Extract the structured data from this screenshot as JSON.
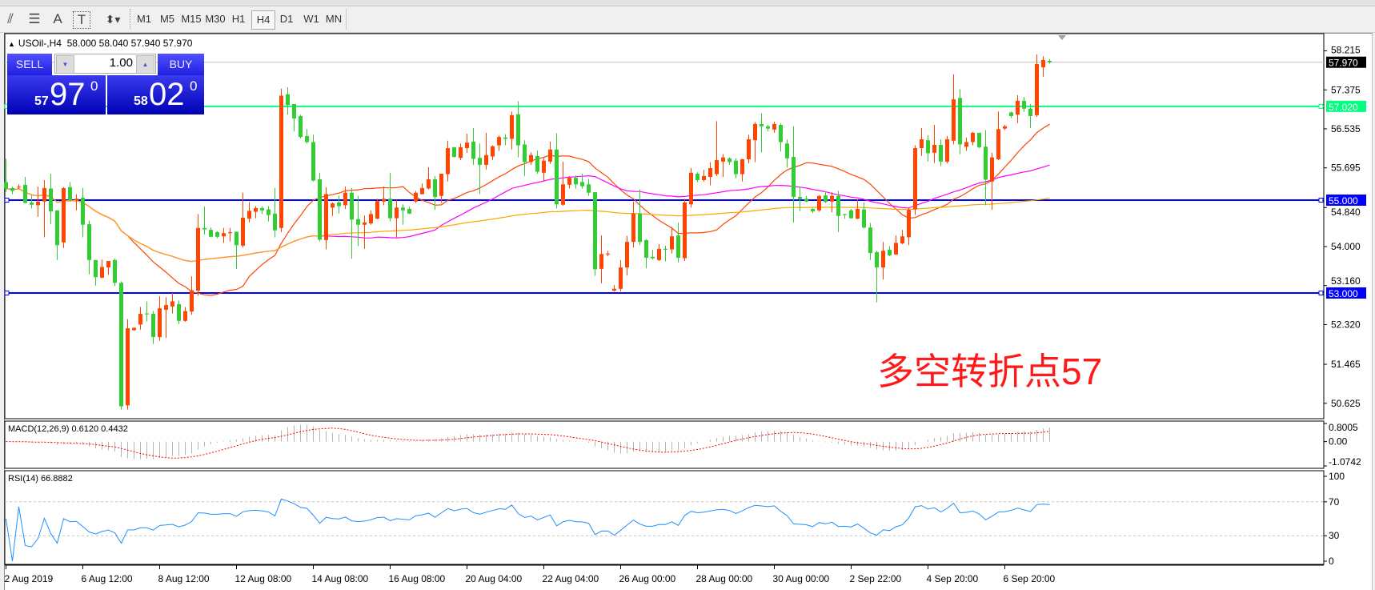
{
  "toolbar": {
    "tools": [
      {
        "icon": "fibonacci-expansion-icon",
        "glyph": "⫽"
      },
      {
        "icon": "fibonacci-retracement-icon",
        "glyph": "☰"
      },
      {
        "icon": "text-icon",
        "glyph": "A"
      },
      {
        "icon": "text-label-icon",
        "glyph": "T"
      },
      {
        "icon": "arrows-icon",
        "glyph": "⬍▾"
      }
    ],
    "timeframes": [
      "M1",
      "M5",
      "M15",
      "M30",
      "H1",
      "H4",
      "D1",
      "W1",
      "MN"
    ],
    "active_timeframe": "H4"
  },
  "chart": {
    "symbol": "USOil-,H4",
    "ohlc_text": "58.000 58.040 57.940 57.970"
  },
  "trade_panel": {
    "sell_label": "SELL",
    "buy_label": "BUY",
    "lot": "1.00",
    "sell_price": {
      "prefix": "57",
      "big": "97",
      "sup": "0"
    },
    "buy_price": {
      "prefix": "58",
      "big": "02",
      "sup": "0"
    },
    "colors": {
      "panel": "#1a1ae0"
    }
  },
  "annotation": "多空转折点57",
  "chart_data": {
    "type": "candlestick",
    "colors": {
      "bull": "#ff4500",
      "bear": "#32cd32",
      "ma_fast": "#ff4500",
      "ma_mid": "#ff00ff",
      "ma_slow": "#ffa500",
      "rsi": "#1e90ff",
      "macd_signal": "#ff0000",
      "macd_hist": "#b4b4b4"
    },
    "price_axis": {
      "ticks": [
        "58.215",
        "57.375",
        "56.535",
        "55.695",
        "54.840",
        "54.000",
        "53.160",
        "52.320",
        "51.465",
        "50.625"
      ],
      "range": [
        50.3,
        58.55
      ]
    },
    "current_price": "57.970",
    "hlines": [
      {
        "price": "57.020",
        "color": "#00ff7f",
        "text_color": "#ffffff"
      },
      {
        "price": "55.000",
        "color": "#0000ff",
        "text_color": "#ffffff"
      },
      {
        "price": "53.000",
        "color": "#0000ff",
        "text_color": "#ffffff"
      }
    ],
    "moving_averages": [
      {
        "period": 20,
        "color": "#ff4500"
      },
      {
        "period": 50,
        "color": "#ff00ff"
      },
      {
        "period": 200,
        "color": "#ffa500"
      }
    ],
    "macd": {
      "label": "MACD(12,26,9) 0.6120 0.4432",
      "fast": 12,
      "slow": 26,
      "signal": 9,
      "axis": [
        "0.8005",
        "0.00",
        "-1.0742"
      ],
      "range": [
        -1.0742,
        0.8005
      ]
    },
    "rsi": {
      "label": "RSI(14) 66.8882",
      "period": 14,
      "axis": [
        "100",
        "70",
        "30",
        "0"
      ],
      "levels": [
        70,
        30
      ]
    },
    "time_labels": [
      {
        "bar": 0,
        "text": "2 Aug 2019"
      },
      {
        "bar": 12,
        "text": "6 Aug 12:00"
      },
      {
        "bar": 24,
        "text": "8 Aug 12:00"
      },
      {
        "bar": 36,
        "text": "12 Aug 08:00"
      },
      {
        "bar": 48,
        "text": "14 Aug 08:00"
      },
      {
        "bar": 60,
        "text": "16 Aug 08:00"
      },
      {
        "bar": 72,
        "text": "20 Aug 04:00"
      },
      {
        "bar": 84,
        "text": "22 Aug 04:00"
      },
      {
        "bar": 96,
        "text": "26 Aug 00:00"
      },
      {
        "bar": 108,
        "text": "28 Aug 00:00"
      },
      {
        "bar": 120,
        "text": "30 Aug 00:00"
      },
      {
        "bar": 132,
        "text": "2 Sep 22:00"
      },
      {
        "bar": 144,
        "text": "4 Sep 20:00"
      },
      {
        "bar": 156,
        "text": "6 Sep 20:00"
      }
    ],
    "ohlc": [
      [
        55.39,
        55.89,
        55.17,
        55.25
      ],
      [
        55.26,
        55.29,
        55.13,
        55.2
      ],
      [
        55.29,
        55.34,
        55.24,
        55.29
      ],
      [
        55.33,
        55.5,
        54.93,
        54.94
      ],
      [
        54.95,
        55.11,
        54.82,
        54.9
      ],
      [
        54.89,
        55.29,
        54.64,
        54.97
      ],
      [
        54.97,
        55.43,
        54.2,
        55.26
      ],
      [
        55.25,
        55.57,
        54.48,
        54.76
      ],
      [
        54.78,
        54.78,
        53.71,
        54.03
      ],
      [
        54.09,
        55.28,
        53.97,
        55.26
      ],
      [
        55.28,
        55.39,
        54.97,
        55.0
      ],
      [
        55.0,
        55.13,
        54.78,
        55.03
      ],
      [
        55.05,
        55.26,
        54.2,
        54.47
      ],
      [
        54.48,
        54.56,
        53.4,
        53.71
      ],
      [
        53.71,
        53.71,
        53.16,
        53.34
      ],
      [
        53.33,
        53.72,
        53.32,
        53.56
      ],
      [
        53.55,
        53.69,
        53.39,
        53.69
      ],
      [
        53.71,
        53.74,
        53.15,
        53.22
      ],
      [
        53.22,
        53.25,
        50.49,
        50.56
      ],
      [
        50.58,
        52.44,
        50.49,
        52.24
      ],
      [
        52.2,
        52.26,
        52.19,
        52.25
      ],
      [
        52.32,
        52.7,
        52.21,
        52.55
      ],
      [
        52.56,
        52.82,
        52.39,
        52.54
      ],
      [
        52.55,
        52.61,
        51.9,
        52.05
      ],
      [
        52.05,
        52.93,
        51.97,
        52.67
      ],
      [
        52.64,
        52.91,
        52.03,
        52.74
      ],
      [
        52.71,
        53.0,
        52.56,
        52.82
      ],
      [
        52.76,
        52.84,
        52.33,
        52.4
      ],
      [
        52.4,
        52.7,
        52.38,
        52.61
      ],
      [
        52.6,
        53.36,
        52.53,
        53.06
      ],
      [
        53.05,
        54.7,
        52.94,
        54.4
      ],
      [
        54.4,
        54.86,
        54.26,
        54.37
      ],
      [
        54.36,
        54.41,
        54.21,
        54.21
      ],
      [
        54.31,
        54.33,
        54.18,
        54.21
      ],
      [
        54.22,
        54.4,
        54.08,
        54.29
      ],
      [
        54.29,
        54.4,
        54.11,
        54.31
      ],
      [
        54.32,
        54.32,
        53.52,
        54.03
      ],
      [
        54.02,
        55.16,
        53.98,
        54.62
      ],
      [
        54.6,
        54.96,
        54.52,
        54.77
      ],
      [
        54.75,
        54.87,
        54.61,
        54.83
      ],
      [
        54.83,
        54.87,
        54.7,
        54.78
      ],
      [
        54.8,
        54.87,
        54.54,
        54.68
      ],
      [
        54.71,
        55.26,
        54.2,
        54.35
      ],
      [
        54.4,
        57.4,
        54.31,
        57.25
      ],
      [
        57.28,
        57.43,
        56.84,
        57.05
      ],
      [
        57.07,
        57.07,
        56.48,
        56.76
      ],
      [
        56.81,
        56.84,
        56.33,
        56.36
      ],
      [
        56.38,
        56.53,
        56.22,
        56.25
      ],
      [
        56.25,
        56.41,
        55.4,
        55.42
      ],
      [
        55.45,
        55.59,
        54.11,
        54.15
      ],
      [
        54.14,
        55.28,
        53.94,
        55.13
      ],
      [
        54.84,
        54.95,
        54.66,
        54.93
      ],
      [
        54.95,
        55.09,
        54.71,
        54.87
      ],
      [
        54.89,
        55.29,
        54.81,
        55.16
      ],
      [
        55.16,
        55.26,
        53.74,
        54.58
      ],
      [
        54.59,
        55.09,
        54.01,
        54.47
      ],
      [
        54.47,
        54.67,
        53.95,
        54.52
      ],
      [
        54.5,
        54.78,
        54.47,
        54.7
      ],
      [
        54.6,
        55.03,
        54.59,
        54.98
      ],
      [
        54.97,
        55.29,
        54.89,
        55.03
      ],
      [
        55.03,
        55.59,
        54.54,
        54.61
      ],
      [
        54.61,
        55.0,
        54.2,
        54.84
      ],
      [
        54.84,
        54.91,
        54.47,
        54.78
      ],
      [
        54.81,
        54.86,
        54.7,
        54.71
      ],
      [
        54.97,
        55.2,
        54.94,
        55.16
      ],
      [
        55.13,
        55.36,
        55.12,
        55.26
      ],
      [
        55.25,
        55.71,
        55.23,
        55.45
      ],
      [
        55.45,
        55.52,
        54.79,
        55.07
      ],
      [
        55.09,
        55.57,
        54.94,
        55.57
      ],
      [
        55.56,
        56.28,
        55.4,
        56.12
      ],
      [
        56.14,
        56.14,
        55.92,
        55.93
      ],
      [
        55.91,
        56.22,
        55.86,
        56.14
      ],
      [
        56.12,
        56.43,
        56.02,
        56.24
      ],
      [
        56.26,
        56.55,
        55.76,
        55.89
      ],
      [
        55.91,
        56.22,
        55.13,
        55.76
      ],
      [
        55.76,
        56.45,
        55.66,
        55.97
      ],
      [
        55.94,
        56.18,
        55.86,
        56.16
      ],
      [
        56.18,
        56.39,
        56.06,
        56.36
      ],
      [
        56.35,
        56.42,
        56.18,
        56.32
      ],
      [
        56.32,
        56.91,
        56.09,
        56.83
      ],
      [
        56.85,
        57.13,
        55.92,
        56.18
      ],
      [
        56.2,
        56.29,
        55.52,
        55.82
      ],
      [
        55.82,
        56.03,
        55.76,
        55.97
      ],
      [
        55.95,
        56.07,
        55.57,
        55.61
      ],
      [
        55.59,
        55.91,
        55.4,
        55.85
      ],
      [
        55.83,
        56.26,
        55.78,
        56.09
      ],
      [
        56.09,
        56.44,
        54.82,
        54.91
      ],
      [
        54.9,
        55.83,
        54.88,
        55.34
      ],
      [
        55.33,
        55.52,
        55.25,
        55.48
      ],
      [
        55.48,
        55.53,
        55.25,
        55.34
      ],
      [
        55.39,
        55.57,
        55.25,
        55.3
      ],
      [
        55.34,
        55.46,
        55.09,
        55.16
      ],
      [
        55.17,
        55.17,
        53.37,
        53.51
      ],
      [
        53.52,
        54.24,
        53.21,
        53.84
      ],
      [
        53.83,
        53.91,
        53.79,
        53.85
      ],
      [
        53.05,
        53.17,
        53.03,
        53.09
      ],
      [
        53.09,
        53.71,
        53.03,
        53.55
      ],
      [
        53.55,
        54.23,
        53.38,
        54.1
      ],
      [
        54.1,
        54.97,
        53.98,
        54.71
      ],
      [
        54.71,
        55.23,
        54.03,
        54.1
      ],
      [
        54.14,
        54.16,
        53.53,
        53.76
      ],
      [
        53.78,
        53.93,
        53.72,
        53.75
      ],
      [
        53.71,
        54.05,
        53.69,
        53.95
      ],
      [
        53.95,
        54.02,
        53.68,
        53.93
      ],
      [
        53.94,
        54.42,
        53.85,
        54.22
      ],
      [
        54.24,
        54.52,
        53.66,
        53.76
      ],
      [
        53.75,
        55.03,
        53.69,
        54.95
      ],
      [
        54.91,
        55.69,
        54.84,
        55.59
      ],
      [
        55.57,
        55.6,
        55.39,
        55.43
      ],
      [
        55.43,
        55.65,
        55.4,
        55.52
      ],
      [
        55.5,
        55.82,
        55.32,
        55.69
      ],
      [
        55.56,
        56.7,
        55.52,
        55.86
      ],
      [
        55.83,
        55.99,
        55.5,
        55.92
      ],
      [
        55.9,
        55.92,
        55.76,
        55.82
      ],
      [
        55.85,
        55.9,
        55.47,
        55.56
      ],
      [
        55.56,
        55.89,
        55.4,
        55.88
      ],
      [
        55.88,
        56.41,
        55.79,
        56.31
      ],
      [
        56.29,
        56.68,
        55.82,
        56.64
      ],
      [
        56.64,
        56.87,
        56.03,
        56.59
      ],
      [
        56.59,
        56.62,
        56.48,
        56.54
      ],
      [
        56.52,
        56.69,
        56.45,
        56.64
      ],
      [
        56.62,
        56.65,
        56.05,
        56.25
      ],
      [
        56.22,
        56.31,
        55.7,
        55.9
      ],
      [
        55.93,
        56.59,
        54.52,
        55.07
      ],
      [
        55.07,
        55.29,
        54.76,
        55.02
      ],
      [
        55.03,
        55.09,
        54.96,
        54.97
      ],
      [
        54.81,
        54.83,
        54.72,
        54.76
      ],
      [
        54.78,
        55.11,
        54.75,
        55.09
      ],
      [
        55.1,
        55.19,
        54.94,
        54.96
      ],
      [
        54.97,
        55.17,
        54.74,
        55.09
      ],
      [
        55.09,
        55.2,
        54.31,
        54.66
      ],
      [
        54.7,
        54.7,
        54.6,
        54.68
      ],
      [
        54.78,
        54.81,
        54.6,
        54.61
      ],
      [
        54.6,
        55.02,
        54.59,
        54.81
      ],
      [
        54.8,
        54.95,
        54.39,
        54.41
      ],
      [
        54.41,
        54.51,
        53.71,
        53.86
      ],
      [
        53.88,
        53.91,
        52.8,
        53.55
      ],
      [
        53.55,
        54.1,
        53.29,
        53.91
      ],
      [
        53.93,
        54.01,
        53.79,
        53.81
      ],
      [
        53.83,
        54.24,
        53.82,
        54.08
      ],
      [
        54.07,
        54.36,
        54.05,
        54.22
      ],
      [
        54.2,
        54.84,
        54.03,
        54.79
      ],
      [
        54.8,
        56.18,
        54.68,
        56.12
      ],
      [
        56.12,
        56.55,
        55.95,
        56.31
      ],
      [
        56.29,
        56.4,
        55.83,
        56.01
      ],
      [
        56.02,
        56.62,
        55.8,
        56.19
      ],
      [
        56.19,
        56.31,
        55.73,
        55.83
      ],
      [
        55.83,
        56.38,
        55.79,
        56.31
      ],
      [
        56.28,
        57.71,
        56.2,
        57.17
      ],
      [
        57.2,
        57.39,
        55.99,
        56.2
      ],
      [
        56.15,
        56.35,
        56.06,
        56.25
      ],
      [
        56.25,
        56.47,
        56.18,
        56.45
      ],
      [
        56.45,
        56.45,
        56.12,
        56.14
      ],
      [
        56.15,
        56.51,
        54.89,
        55.44
      ],
      [
        55.4,
        56.02,
        54.79,
        55.92
      ],
      [
        55.88,
        56.91,
        55.86,
        56.53
      ],
      [
        56.54,
        56.62,
        56.51,
        56.59
      ],
      [
        56.89,
        56.91,
        56.77,
        56.81
      ],
      [
        56.84,
        57.26,
        56.66,
        57.14
      ],
      [
        57.14,
        57.22,
        56.9,
        56.97
      ],
      [
        56.97,
        57.07,
        56.55,
        56.81
      ],
      [
        56.83,
        58.14,
        56.79,
        57.93
      ],
      [
        57.86,
        58.1,
        57.66,
        58.02
      ],
      [
        58.0,
        58.04,
        57.94,
        57.97
      ]
    ]
  }
}
